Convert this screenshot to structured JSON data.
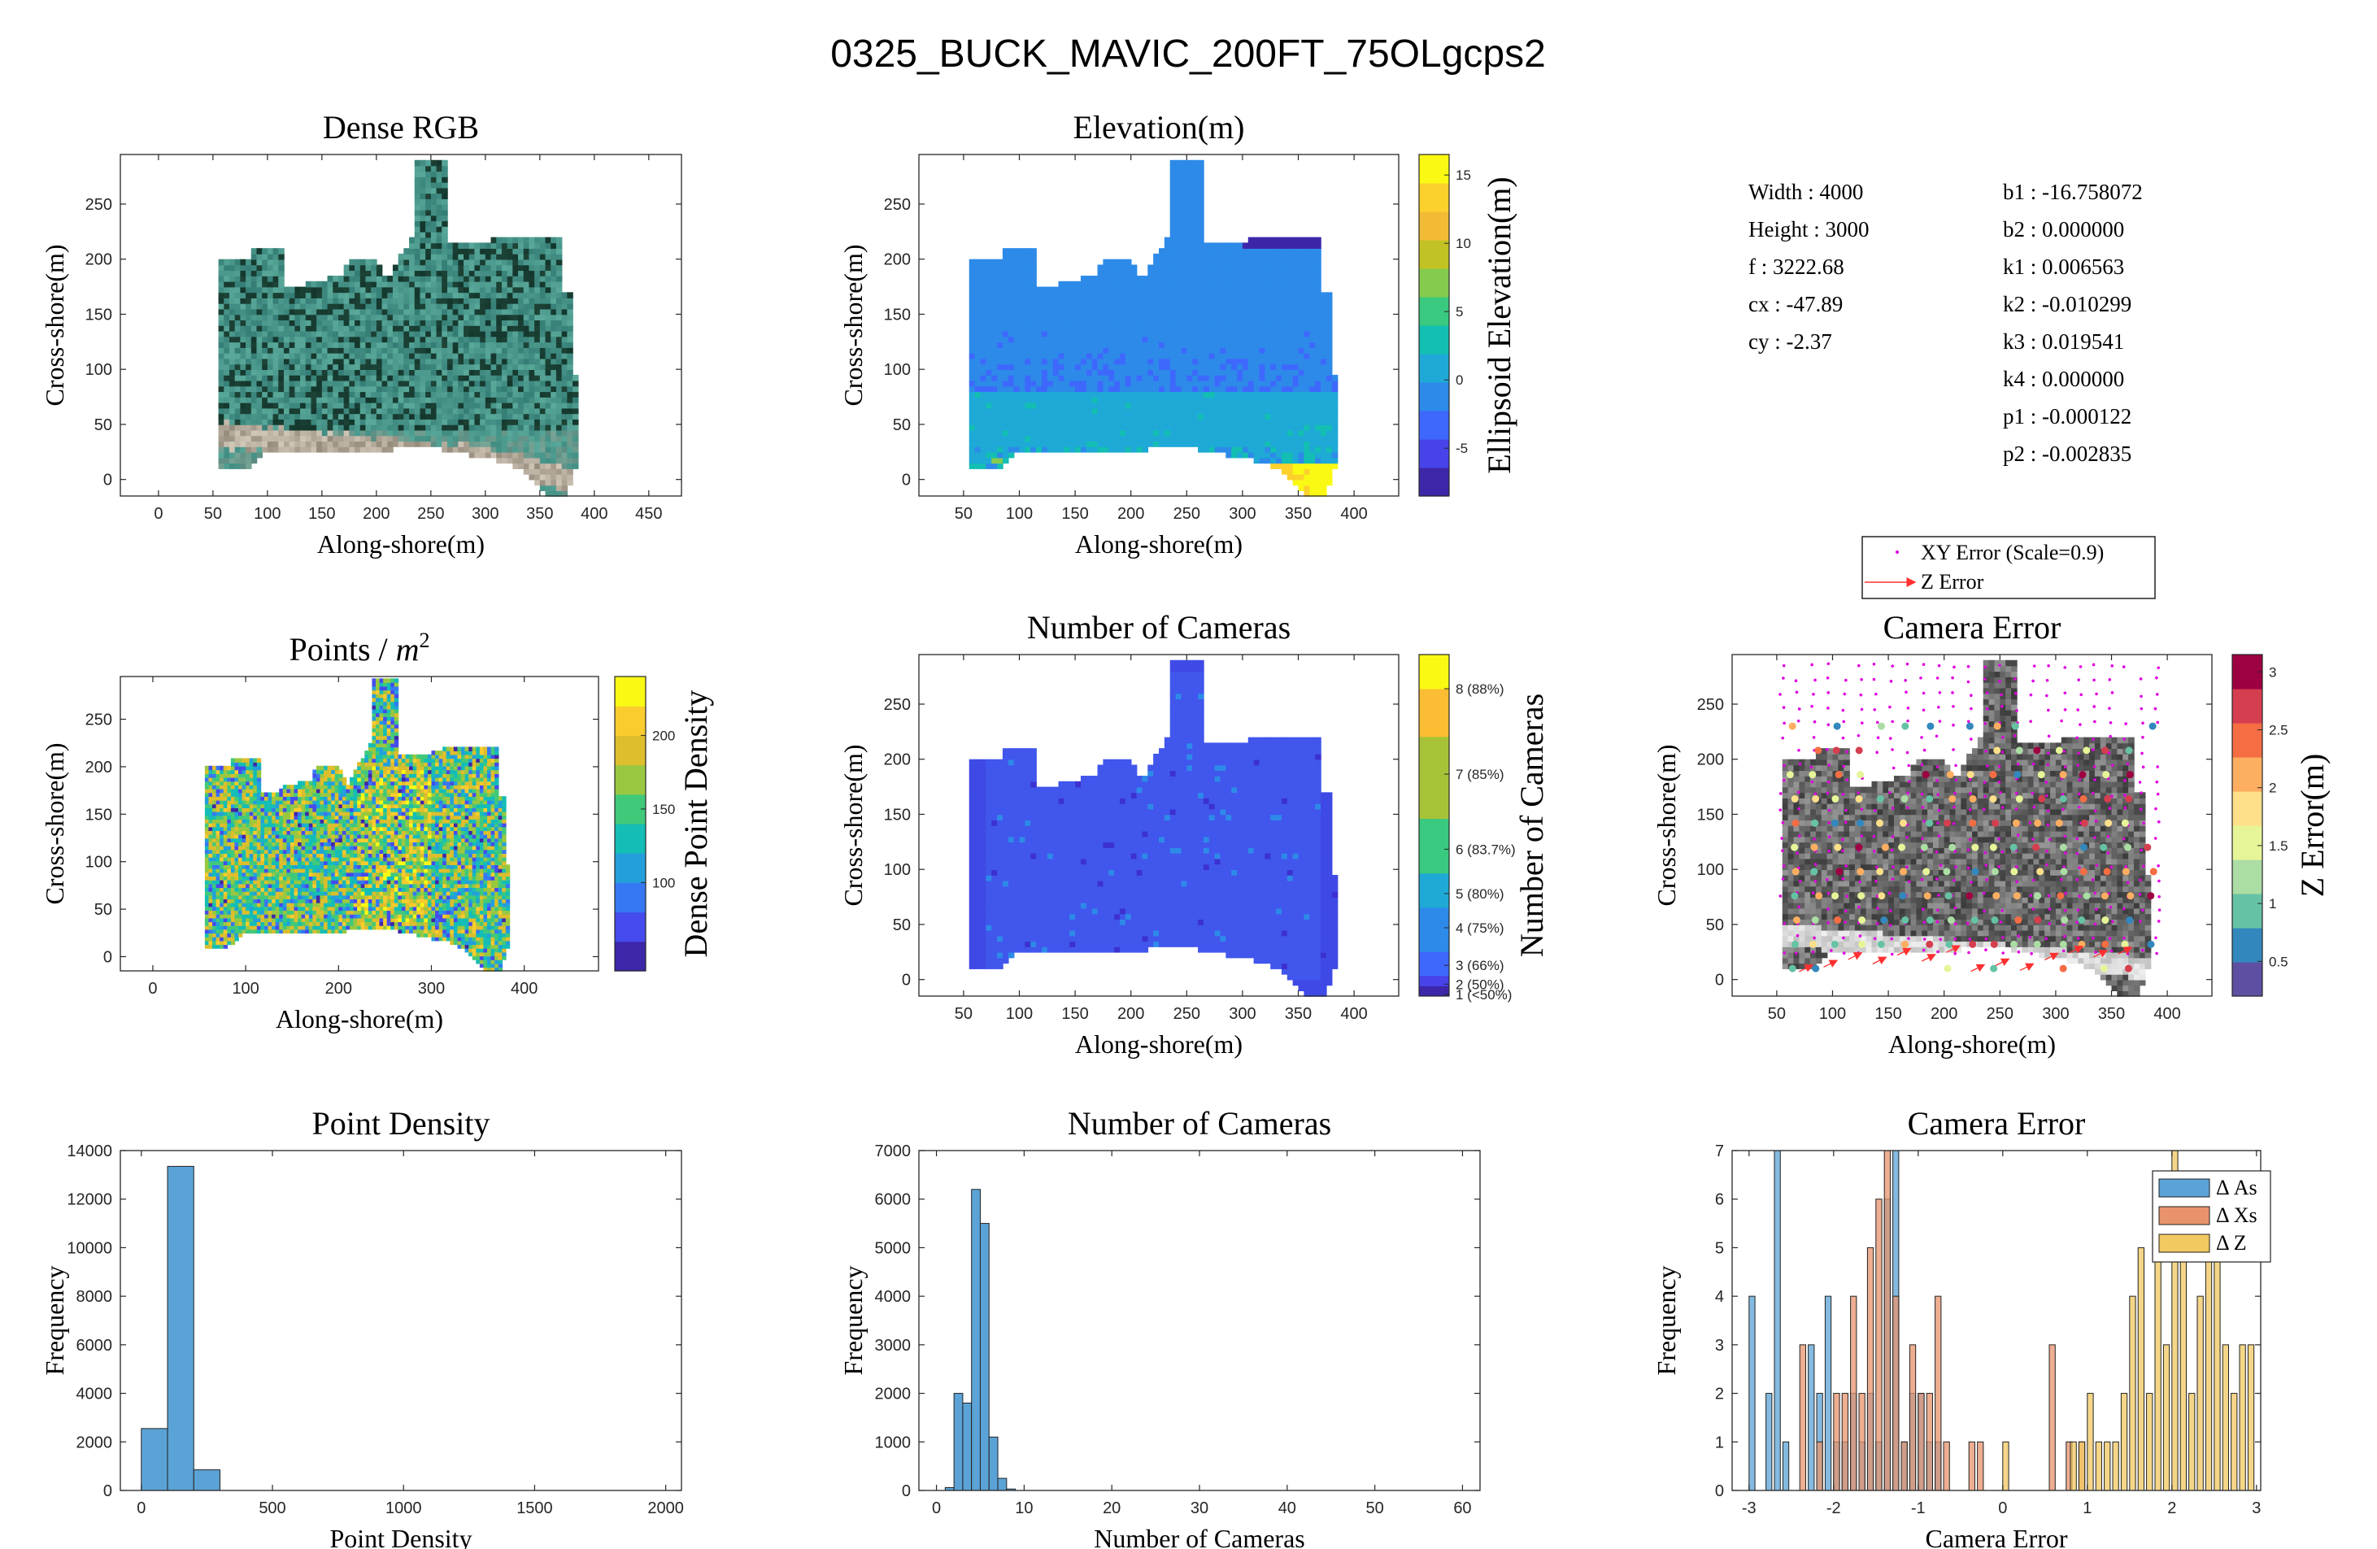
{
  "suptitle": "0325_BUCK_MAVIC_200FT_75OLgcps2",
  "params_left": [
    "Width : 4000",
    "Height : 3000",
    "f : 3222.68",
    "cx : -47.89",
    "cy : -2.37"
  ],
  "params_right": [
    "b1 : -16.758072",
    "b2 : 0.000000",
    "k1 : 0.006563",
    "k2 : -0.010299",
    "k3 : 0.019541",
    "k4 : 0.000000",
    "p1 : -0.000122",
    "p2 : -0.002835"
  ],
  "legend_xy": {
    "xy": "XY Error (Scale=0.9)",
    "z": "Z Error"
  },
  "colors": {
    "hist_as": "#5ba3d6",
    "hist_xs": "#e8936c",
    "hist_z": "#f2c860",
    "xy_marker": "#e000e0",
    "z_arrow": "#ff3030"
  },
  "chart_data": [
    {
      "type": "heatmap",
      "id": "dense-rgb",
      "title": "Dense RGB",
      "xlabel": "Along-shore(m)",
      "ylabel": "Cross-shore(m)",
      "xlim": [
        -35,
        480
      ],
      "ylim": [
        -15,
        295
      ],
      "xticks": [
        0,
        50,
        100,
        150,
        200,
        250,
        300,
        350,
        400,
        450
      ],
      "yticks": [
        0,
        50,
        100,
        150,
        200,
        250
      ],
      "footprint": [
        [
          55,
          30
        ],
        [
          55,
          200
        ],
        [
          85,
          200
        ],
        [
          85,
          210
        ],
        [
          115,
          210
        ],
        [
          115,
          175
        ],
        [
          135,
          175
        ],
        [
          140,
          180
        ],
        [
          170,
          185
        ],
        [
          175,
          200
        ],
        [
          200,
          200
        ],
        [
          210,
          180
        ],
        [
          220,
          200
        ],
        [
          230,
          215
        ],
        [
          235,
          225
        ],
        [
          235,
          292
        ],
        [
          265,
          292
        ],
        [
          265,
          215
        ],
        [
          300,
          215
        ],
        [
          315,
          220
        ],
        [
          345,
          220
        ],
        [
          370,
          220
        ],
        [
          372,
          170
        ],
        [
          380,
          170
        ],
        [
          380,
          110
        ],
        [
          385,
          80
        ],
        [
          385,
          20
        ],
        [
          375,
          -15
        ],
        [
          360,
          -15
        ],
        [
          340,
          5
        ],
        [
          320,
          15
        ],
        [
          250,
          30
        ],
        [
          180,
          25
        ],
        [
          100,
          25
        ],
        [
          80,
          10
        ],
        [
          55,
          10
        ]
      ]
    },
    {
      "type": "heatmap",
      "id": "elevation",
      "title": "Elevation(m)",
      "xlabel": "Along-shore(m)",
      "ylabel": "Cross-shore(m)",
      "colorbar_label": "Ellipsoid Elevation(m)",
      "xlim": [
        10,
        440
      ],
      "ylim": [
        -15,
        295
      ],
      "xticks": [
        50,
        100,
        150,
        200,
        250,
        300,
        350,
        400
      ],
      "yticks": [
        0,
        50,
        100,
        150,
        200,
        250
      ],
      "clim": [
        -8.5,
        16.5
      ],
      "cticks": [
        -5,
        0,
        5,
        10,
        15
      ],
      "footprint": [
        [
          55,
          30
        ],
        [
          55,
          200
        ],
        [
          85,
          200
        ],
        [
          85,
          210
        ],
        [
          115,
          210
        ],
        [
          115,
          175
        ],
        [
          135,
          175
        ],
        [
          140,
          180
        ],
        [
          170,
          185
        ],
        [
          175,
          200
        ],
        [
          200,
          200
        ],
        [
          210,
          180
        ],
        [
          220,
          200
        ],
        [
          230,
          215
        ],
        [
          235,
          225
        ],
        [
          235,
          292
        ],
        [
          265,
          292
        ],
        [
          265,
          215
        ],
        [
          300,
          215
        ],
        [
          315,
          220
        ],
        [
          345,
          220
        ],
        [
          370,
          220
        ],
        [
          372,
          170
        ],
        [
          380,
          170
        ],
        [
          380,
          110
        ],
        [
          385,
          80
        ],
        [
          385,
          20
        ],
        [
          375,
          -15
        ],
        [
          360,
          -15
        ],
        [
          340,
          5
        ],
        [
          320,
          15
        ],
        [
          250,
          30
        ],
        [
          180,
          25
        ],
        [
          100,
          25
        ],
        [
          80,
          10
        ],
        [
          55,
          10
        ]
      ]
    },
    {
      "type": "heatmap",
      "id": "points",
      "title": "Points / m",
      "title_sup": "2",
      "xlabel": "Along-shore(m)",
      "ylabel": "Cross-shore(m)",
      "colorbar_label": "Dense Point Density",
      "xlim": [
        -35,
        480
      ],
      "ylim": [
        -15,
        295
      ],
      "xticks": [
        0,
        100,
        200,
        300,
        400
      ],
      "yticks": [
        0,
        50,
        100,
        150,
        200,
        250
      ],
      "clim": [
        40,
        240
      ],
      "cticks": [
        100,
        150,
        200
      ],
      "footprint": [
        [
          55,
          30
        ],
        [
          55,
          200
        ],
        [
          85,
          200
        ],
        [
          85,
          210
        ],
        [
          115,
          210
        ],
        [
          115,
          175
        ],
        [
          135,
          175
        ],
        [
          140,
          180
        ],
        [
          170,
          185
        ],
        [
          175,
          200
        ],
        [
          200,
          200
        ],
        [
          210,
          180
        ],
        [
          220,
          200
        ],
        [
          230,
          215
        ],
        [
          235,
          225
        ],
        [
          235,
          292
        ],
        [
          265,
          292
        ],
        [
          265,
          215
        ],
        [
          300,
          215
        ],
        [
          315,
          220
        ],
        [
          345,
          220
        ],
        [
          370,
          220
        ],
        [
          372,
          170
        ],
        [
          380,
          170
        ],
        [
          380,
          110
        ],
        [
          385,
          80
        ],
        [
          385,
          20
        ],
        [
          375,
          -15
        ],
        [
          360,
          -15
        ],
        [
          340,
          5
        ],
        [
          320,
          15
        ],
        [
          250,
          30
        ],
        [
          180,
          25
        ],
        [
          100,
          25
        ],
        [
          80,
          10
        ],
        [
          55,
          10
        ]
      ]
    },
    {
      "type": "heatmap",
      "id": "num-cameras-map",
      "title": "Number of Cameras",
      "xlabel": "Along-shore(m)",
      "ylabel": "Cross-shore(m)",
      "colorbar_label": "Number of Cameras",
      "xlim": [
        10,
        440
      ],
      "ylim": [
        -15,
        295
      ],
      "xticks": [
        50,
        100,
        150,
        200,
        250,
        300,
        350,
        400
      ],
      "yticks": [
        0,
        50,
        100,
        150,
        200,
        250
      ],
      "clim": [
        0.5,
        9.0
      ],
      "cticks": [
        {
          "v": 1,
          "label": "1 (<50%)"
        },
        {
          "v": 2,
          "label": "2 (50%)"
        },
        {
          "v": 3,
          "label": "3 (66%)"
        },
        {
          "v": 4,
          "label": "4 (75%)"
        },
        {
          "v": 5,
          "label": "5 (80%)"
        },
        {
          "v": 6,
          "label": "6 (83.7%)"
        },
        {
          "v": 7,
          "label": "7 (85%)"
        },
        {
          "v": 8,
          "label": "8 (88%)"
        }
      ],
      "footprint": [
        [
          55,
          30
        ],
        [
          55,
          200
        ],
        [
          85,
          200
        ],
        [
          85,
          210
        ],
        [
          115,
          210
        ],
        [
          115,
          175
        ],
        [
          135,
          175
        ],
        [
          140,
          180
        ],
        [
          170,
          185
        ],
        [
          175,
          200
        ],
        [
          200,
          200
        ],
        [
          210,
          180
        ],
        [
          220,
          200
        ],
        [
          230,
          215
        ],
        [
          235,
          225
        ],
        [
          235,
          292
        ],
        [
          265,
          292
        ],
        [
          265,
          215
        ],
        [
          300,
          215
        ],
        [
          315,
          220
        ],
        [
          345,
          220
        ],
        [
          370,
          220
        ],
        [
          372,
          170
        ],
        [
          380,
          170
        ],
        [
          380,
          110
        ],
        [
          385,
          80
        ],
        [
          385,
          20
        ],
        [
          375,
          -15
        ],
        [
          360,
          -15
        ],
        [
          340,
          5
        ],
        [
          320,
          15
        ],
        [
          250,
          30
        ],
        [
          180,
          25
        ],
        [
          100,
          25
        ],
        [
          80,
          10
        ],
        [
          55,
          10
        ]
      ]
    },
    {
      "type": "scatter",
      "id": "camera-error-map",
      "title": "Camera Error",
      "xlabel": "Along-shore(m)",
      "ylabel": "Cross-shore(m)",
      "colorbar_label": "Z Error(m)",
      "xlim": [
        10,
        440
      ],
      "ylim": [
        -15,
        295
      ],
      "xticks": [
        50,
        100,
        150,
        200,
        250,
        300,
        350,
        400
      ],
      "yticks": [
        0,
        50,
        100,
        150,
        200,
        250
      ],
      "clim": [
        0.2,
        3.15
      ],
      "cticks": [
        0.5,
        1,
        1.5,
        2,
        2.5,
        3
      ]
    },
    {
      "type": "bar",
      "id": "point-density-hist",
      "title": "Point Density",
      "xlabel": "Point Density",
      "ylabel": "Frequency",
      "xlim": [
        -80,
        2060
      ],
      "ylim": [
        0,
        14000
      ],
      "xticks": [
        0,
        500,
        1000,
        1500,
        2000
      ],
      "yticks": [
        0,
        2000,
        4000,
        6000,
        8000,
        10000,
        12000,
        14000
      ],
      "bin_edges": [
        0,
        100,
        200,
        300
      ],
      "values": [
        2550,
        13350,
        850
      ]
    },
    {
      "type": "bar",
      "id": "num-cameras-hist",
      "title": "Number of Cameras",
      "xlabel": "Number of Cameras",
      "ylabel": "Frequency",
      "xlim": [
        -2,
        62
      ],
      "ylim": [
        0,
        7000
      ],
      "xticks": [
        0,
        10,
        20,
        30,
        40,
        50,
        60
      ],
      "yticks": [
        0,
        1000,
        2000,
        3000,
        4000,
        5000,
        6000,
        7000
      ],
      "bin_edges": [
        1,
        2,
        3,
        4,
        5,
        6,
        7,
        8,
        9
      ],
      "values": [
        60,
        2000,
        1800,
        6200,
        5500,
        1100,
        250,
        30
      ]
    },
    {
      "type": "bar",
      "id": "camera-error-hist",
      "title": "Camera Error",
      "xlabel": "Camera Error",
      "ylabel": "Frequency",
      "xlim": [
        -3.2,
        3.05
      ],
      "ylim": [
        0,
        7
      ],
      "xticks": [
        -3,
        -2,
        -1,
        0,
        1,
        2,
        3
      ],
      "yticks": [
        0,
        1,
        2,
        3,
        4,
        5,
        6,
        7
      ],
      "bin_width": 0.07,
      "series": [
        {
          "name": "Δ As",
          "color": "#5ba3d6",
          "bins": [
            [
              -3.0,
              4
            ],
            [
              -2.8,
              2
            ],
            [
              -2.7,
              7
            ],
            [
              -2.6,
              1
            ],
            [
              -2.3,
              3
            ],
            [
              -2.2,
              2
            ],
            [
              -2.1,
              4
            ],
            [
              -2.0,
              1
            ],
            [
              -1.9,
              1
            ],
            [
              -1.8,
              2
            ],
            [
              -1.7,
              1
            ],
            [
              -1.6,
              2
            ],
            [
              -1.5,
              1
            ],
            [
              -1.4,
              6
            ],
            [
              -1.3,
              7
            ],
            [
              -1.2,
              1
            ],
            [
              -1.1,
              2
            ],
            [
              -1.0,
              2
            ],
            [
              -0.9,
              1
            ],
            [
              -0.8,
              1
            ]
          ]
        },
        {
          "name": "Δ Xs",
          "color": "#e8936c",
          "bins": [
            [
              -2.4,
              3
            ],
            [
              -2.2,
              1
            ],
            [
              -2.0,
              2
            ],
            [
              -1.9,
              2
            ],
            [
              -1.8,
              4
            ],
            [
              -1.7,
              2
            ],
            [
              -1.6,
              5
            ],
            [
              -1.5,
              6
            ],
            [
              -1.4,
              7
            ],
            [
              -1.3,
              4
            ],
            [
              -1.2,
              1
            ],
            [
              -1.1,
              3
            ],
            [
              -1.0,
              2
            ],
            [
              -0.9,
              2
            ],
            [
              -0.8,
              4
            ],
            [
              -0.7,
              1
            ],
            [
              -0.4,
              1
            ],
            [
              -0.3,
              1
            ],
            [
              0.55,
              3
            ],
            [
              0.75,
              1
            ],
            [
              0.9,
              1
            ]
          ]
        },
        {
          "name": "Δ Z",
          "color": "#f2c860",
          "bins": [
            [
              0.0,
              1
            ],
            [
              0.8,
              1
            ],
            [
              0.9,
              1
            ],
            [
              1.0,
              2
            ],
            [
              1.1,
              1
            ],
            [
              1.2,
              1
            ],
            [
              1.3,
              1
            ],
            [
              1.4,
              2
            ],
            [
              1.5,
              4
            ],
            [
              1.6,
              5
            ],
            [
              1.7,
              2
            ],
            [
              1.8,
              6
            ],
            [
              1.9,
              3
            ],
            [
              2.0,
              7
            ],
            [
              2.1,
              5
            ],
            [
              2.2,
              2
            ],
            [
              2.3,
              4
            ],
            [
              2.4,
              5
            ],
            [
              2.5,
              6
            ],
            [
              2.6,
              3
            ],
            [
              2.7,
              2
            ],
            [
              2.8,
              3
            ],
            [
              2.9,
              3
            ]
          ]
        }
      ]
    }
  ]
}
